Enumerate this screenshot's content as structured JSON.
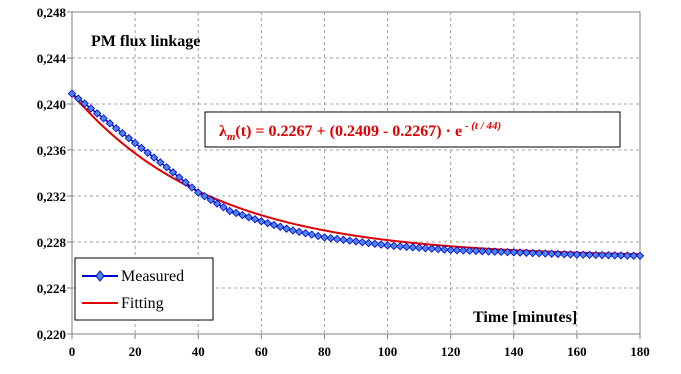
{
  "chart_data": {
    "type": "line",
    "title": "PM flux linkage",
    "xlabel": "Time [minutes]",
    "ylabel": "",
    "xlim": [
      0,
      180
    ],
    "ylim": [
      0.22,
      0.248
    ],
    "x_ticks": [
      "0",
      "20",
      "40",
      "60",
      "80",
      "100",
      "120",
      "140",
      "160",
      "180"
    ],
    "y_ticks": [
      "0,220",
      "0,224",
      "0,228",
      "0,232",
      "0,236",
      "0,240",
      "0,244",
      "0,248"
    ],
    "grid": "major, dashed",
    "legend_position": "bottom-left",
    "series": [
      {
        "name": "Measured",
        "color": "#0000cc",
        "marker": "diamond",
        "step": 2,
        "x": [
          0,
          20,
          30,
          40,
          50,
          60,
          70,
          80,
          100,
          120,
          140,
          160,
          180
        ],
        "y": [
          0.2409,
          0.2366,
          0.2345,
          0.2323,
          0.2307,
          0.2298,
          0.229,
          0.2284,
          0.2277,
          0.2273,
          0.2271,
          0.2269,
          0.2268
        ]
      },
      {
        "name": "Fitting",
        "color": "#e00000",
        "formula": {
          "a": 0.2267,
          "b": 0.2409,
          "tau": 44
        }
      }
    ],
    "annotation": {
      "lambda": "λ",
      "sub": "m",
      "middle": "(t) = 0.2267 + (0.2409 - 0.2267) · e",
      "sup": " - (t / 44)"
    }
  }
}
